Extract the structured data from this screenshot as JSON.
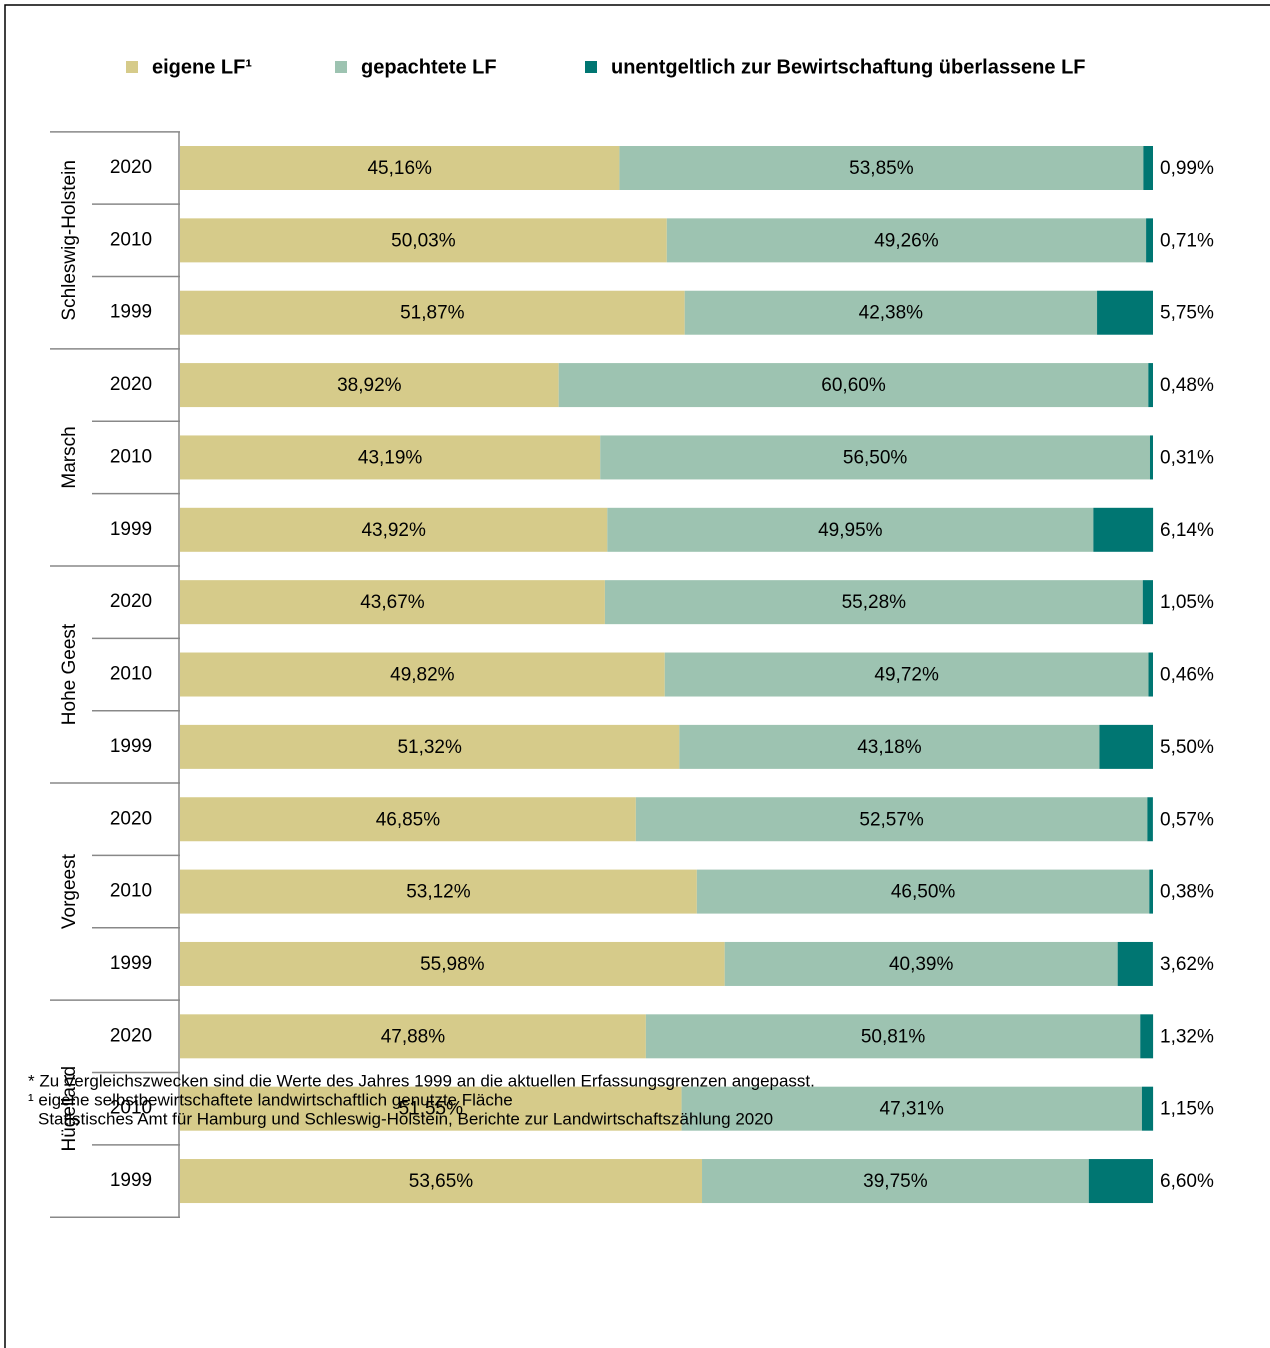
{
  "chart_data": {
    "type": "bar",
    "orientation": "horizontal",
    "stacked": true,
    "groups": [
      {
        "name": "Schleswig-Holstein",
        "categories": [
          "2020",
          "2010",
          "1999"
        ]
      },
      {
        "name": "Marsch",
        "categories": [
          "2020",
          "2010",
          "1999"
        ]
      },
      {
        "name": "Hohe Geest",
        "categories": [
          "2020",
          "2010",
          "1999"
        ]
      },
      {
        "name": "Vorgeest",
        "categories": [
          "2020",
          "2010",
          "1999"
        ]
      },
      {
        "name": "Hügelland",
        "categories": [
          "2020",
          "2010",
          "1999"
        ]
      }
    ],
    "xlim": [
      0,
      100
    ],
    "series": [
      {
        "name": "eigene LF¹",
        "color": "#d6cb8a",
        "values": [
          45.16,
          50.03,
          51.87,
          38.92,
          43.19,
          43.92,
          43.67,
          49.82,
          51.32,
          46.85,
          53.12,
          55.98,
          47.88,
          51.55,
          53.65
        ],
        "value_labels": [
          "45,16%",
          "50,03%",
          "51,87%",
          "38,92%",
          "43,19%",
          "43,92%",
          "43,67%",
          "49,82%",
          "51,32%",
          "46,85%",
          "53,12%",
          "55,98%",
          "47,88%",
          "51,55%",
          "53,65%"
        ]
      },
      {
        "name": "gepachtete LF",
        "color": "#9dc3b1",
        "values": [
          53.85,
          49.26,
          42.38,
          60.6,
          56.5,
          49.95,
          55.28,
          49.72,
          43.18,
          52.57,
          46.5,
          40.39,
          50.81,
          47.31,
          39.75
        ],
        "value_labels": [
          "53,85%",
          "49,26%",
          "42,38%",
          "60,60%",
          "56,50%",
          "49,95%",
          "55,28%",
          "49,72%",
          "43,18%",
          "52,57%",
          "46,50%",
          "40,39%",
          "50,81%",
          "47,31%",
          "39,75%"
        ]
      },
      {
        "name": "unentgeltlich zur Bewirtschaftung überlassene LF",
        "color": "#007672",
        "values": [
          0.99,
          0.71,
          5.75,
          0.48,
          0.31,
          6.14,
          1.05,
          0.46,
          5.5,
          0.57,
          0.38,
          3.62,
          1.32,
          1.15,
          6.6
        ],
        "value_labels": [
          "0,99%",
          "0,71%",
          "5,75%",
          "0,48%",
          "0,31%",
          "6,14%",
          "1,05%",
          "0,46%",
          "5,50%",
          "0,57%",
          "0,38%",
          "3,62%",
          "1,32%",
          "1,15%",
          "6,60%"
        ]
      }
    ],
    "notes": [
      "* Zu Vergleichszwecken sind die Werte des Jahres 1999 an die aktuellen Erfassungsgrenzen angepasst.",
      "¹ eigene selbstbewirtschaftete landwirtschaftlich genutzte Fläche",
      "Statistisches Amt für Hamburg und Schleswig-Holstein, Berichte zur Landwirtschaftszählung 2020"
    ]
  }
}
